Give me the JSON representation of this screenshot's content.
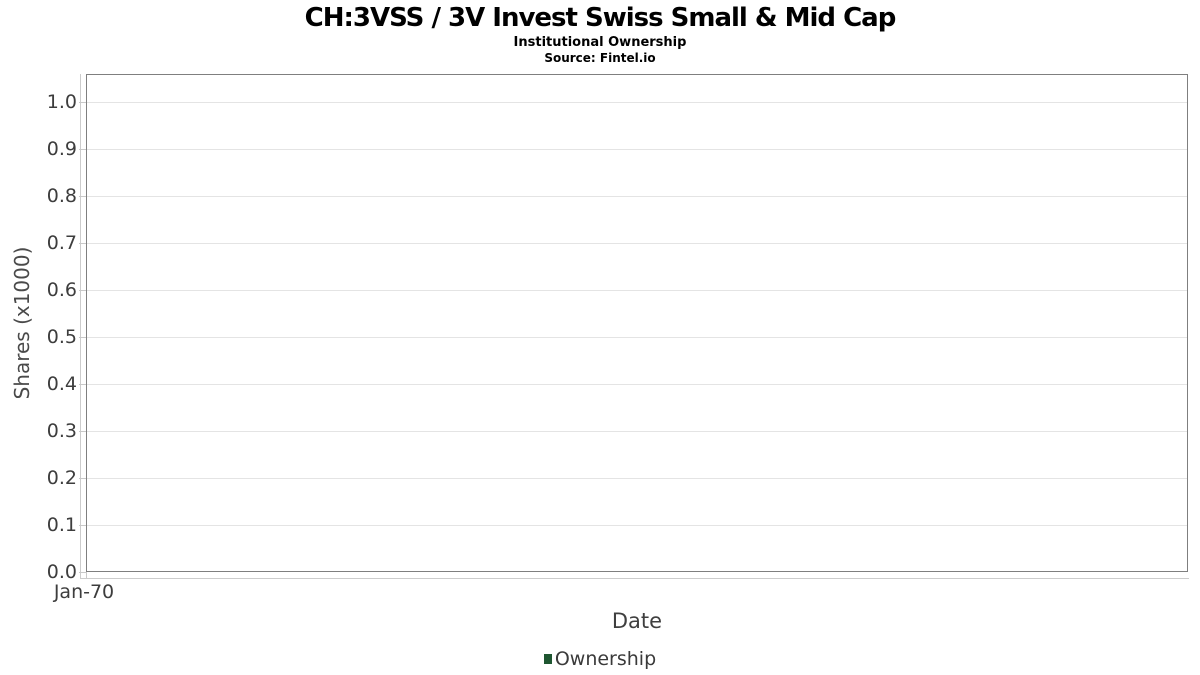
{
  "header": {
    "title": "CH:3VSS / 3V Invest Swiss Small & Mid Cap",
    "subtitle": "Institutional Ownership",
    "source": "Source: Fintel.io"
  },
  "y_axis": {
    "title": "Shares (x1000)",
    "tick_labels": [
      "0.0",
      "0.1",
      "0.2",
      "0.3",
      "0.4",
      "0.5",
      "0.6",
      "0.7",
      "0.8",
      "0.9",
      "1.0"
    ]
  },
  "x_axis": {
    "title": "Date",
    "tick_labels": [
      "Jan-70"
    ]
  },
  "legend": {
    "items": [
      {
        "label": "Ownership",
        "color": "#1e5631"
      }
    ]
  },
  "colors": {
    "plot_border": "#7f7f7f",
    "gridline": "#e4e4e4",
    "axis_line": "#cccccc",
    "tick_text": "#3d3d3d",
    "legend_swatch": "#1e5631"
  },
  "chart_data": {
    "type": "line",
    "title": "CH:3VSS / 3V Invest Swiss Small & Mid Cap",
    "subtitle": "Institutional Ownership",
    "source": "Source: Fintel.io",
    "xlabel": "Date",
    "ylabel": "Shares (x1000)",
    "x_tick_labels": [
      "Jan-70"
    ],
    "y_tick_values": [
      0.0,
      0.1,
      0.2,
      0.3,
      0.4,
      0.5,
      0.6,
      0.7,
      0.8,
      0.9,
      1.0
    ],
    "ylim": [
      0.0,
      1.06
    ],
    "grid": "horizontal",
    "legend_position": "bottom-center",
    "series": [
      {
        "name": "Ownership",
        "color": "#1e5631",
        "x": [],
        "values": []
      }
    ],
    "note_empty": ""
  }
}
